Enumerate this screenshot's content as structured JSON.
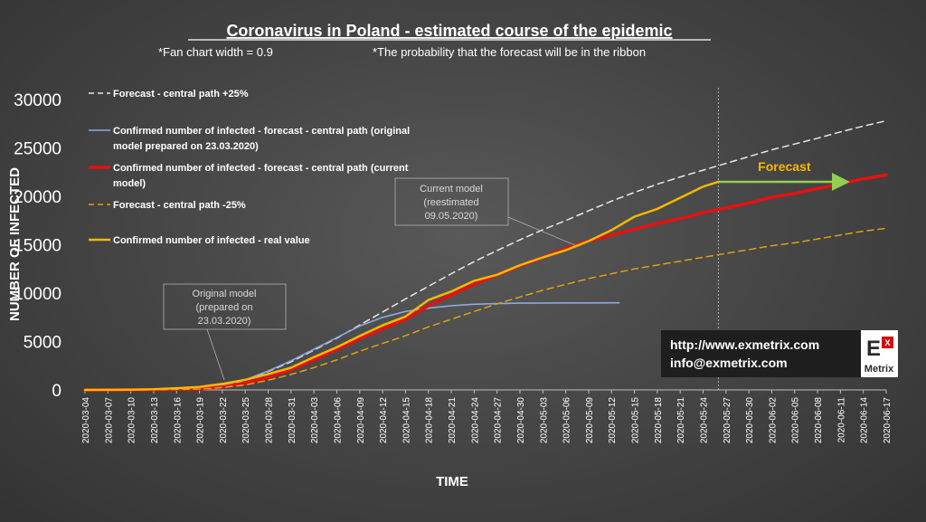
{
  "chart_data": {
    "type": "line",
    "title": "Coronavirus in Poland - estimated course of the epidemic",
    "subtitle_left": "*Fan chart width = 0.9",
    "subtitle_right": "*The probability that the forecast will be in the ribbon",
    "xlabel": "TIME",
    "ylabel": "NUMBER OF INFECTED",
    "ylim": [
      0,
      30000
    ],
    "yticks": [
      0,
      5000,
      10000,
      15000,
      20000,
      25000,
      30000
    ],
    "xtick_labels": [
      "2020-03-04",
      "2020-03-07",
      "2020-03-10",
      "2020-03-13",
      "2020-03-16",
      "2020-03-19",
      "2020-03-22",
      "2020-03-25",
      "2020-03-28",
      "2020-03-31",
      "2020-04-03",
      "2020-04-06",
      "2020-04-09",
      "2020-04-12",
      "2020-04-15",
      "2020-04-18",
      "2020-04-21",
      "2020-04-24",
      "2020-04-27",
      "2020-04-30",
      "2020-05-03",
      "2020-05-06",
      "2020-05-09",
      "2020-05-12",
      "2020-05-15",
      "2020-05-18",
      "2020-05-21",
      "2020-05-24",
      "2020-05-27",
      "2020-05-30",
      "2020-06-02",
      "2020-06-05",
      "2020-06-08",
      "2020-06-11",
      "2020-06-14",
      "2020-06-17"
    ],
    "grid": false,
    "legend_position": "top-left",
    "forecast_start": "2020-05-26",
    "forecast_label": "Forecast",
    "series": [
      {
        "name": "Forecast - central path +25%",
        "color": "#e8e8e8",
        "style": "dashed",
        "width": 1.5,
        "points": [
          [
            "2020-03-04",
            0
          ],
          [
            "2020-03-13",
            30
          ],
          [
            "2020-03-19",
            200
          ],
          [
            "2020-03-22",
            450
          ],
          [
            "2020-03-25",
            1000
          ],
          [
            "2020-03-28",
            1900
          ],
          [
            "2020-03-31",
            2900
          ],
          [
            "2020-04-03",
            4100
          ],
          [
            "2020-04-06",
            5350
          ],
          [
            "2020-04-09",
            6700
          ],
          [
            "2020-04-12",
            8050
          ],
          [
            "2020-04-15",
            9400
          ],
          [
            "2020-04-18",
            10700
          ],
          [
            "2020-04-21",
            12000
          ],
          [
            "2020-04-24",
            13250
          ],
          [
            "2020-04-27",
            14400
          ],
          [
            "2020-04-30",
            15500
          ],
          [
            "2020-05-03",
            16550
          ],
          [
            "2020-05-06",
            17500
          ],
          [
            "2020-05-09",
            18500
          ],
          [
            "2020-05-12",
            19500
          ],
          [
            "2020-05-15",
            20400
          ],
          [
            "2020-05-18",
            21250
          ],
          [
            "2020-05-21",
            22000
          ],
          [
            "2020-05-24",
            22700
          ],
          [
            "2020-05-27",
            23400
          ],
          [
            "2020-05-30",
            24100
          ],
          [
            "2020-06-02",
            24800
          ],
          [
            "2020-06-05",
            25400
          ],
          [
            "2020-06-08",
            26000
          ],
          [
            "2020-06-11",
            26650
          ],
          [
            "2020-06-14",
            27250
          ],
          [
            "2020-06-17",
            27800
          ]
        ]
      },
      {
        "name": "Confirmed number of infected - forecast - central path (original model prepared on 23.03.2020)",
        "color": "#8ea9db",
        "style": "solid",
        "width": 1.6,
        "points": [
          [
            "2020-03-04",
            0
          ],
          [
            "2020-03-13",
            30
          ],
          [
            "2020-03-19",
            200
          ],
          [
            "2020-03-22",
            500
          ],
          [
            "2020-03-25",
            1050
          ],
          [
            "2020-03-28",
            1950
          ],
          [
            "2020-03-31",
            3000
          ],
          [
            "2020-04-03",
            4200
          ],
          [
            "2020-04-06",
            5400
          ],
          [
            "2020-04-09",
            6600
          ],
          [
            "2020-04-12",
            7500
          ],
          [
            "2020-04-15",
            8100
          ],
          [
            "2020-04-18",
            8450
          ],
          [
            "2020-04-21",
            8700
          ],
          [
            "2020-04-24",
            8850
          ],
          [
            "2020-04-27",
            8920
          ],
          [
            "2020-04-30",
            8960
          ],
          [
            "2020-05-03",
            8980
          ],
          [
            "2020-05-06",
            8990
          ],
          [
            "2020-05-09",
            8995
          ],
          [
            "2020-05-13",
            9000
          ]
        ]
      },
      {
        "name": "Confirmed number of infected - forecast - central path (current model)",
        "color": "#e81010",
        "style": "solid",
        "width": 3.5,
        "points": [
          [
            "2020-03-04",
            0
          ],
          [
            "2020-03-13",
            20
          ],
          [
            "2020-03-19",
            100
          ],
          [
            "2020-03-22",
            300
          ],
          [
            "2020-03-25",
            700
          ],
          [
            "2020-03-28",
            1300
          ],
          [
            "2020-03-31",
            2100
          ],
          [
            "2020-04-03",
            3100
          ],
          [
            "2020-04-06",
            4200
          ],
          [
            "2020-04-09",
            5300
          ],
          [
            "2020-04-12",
            6300
          ],
          [
            "2020-04-15",
            7300
          ],
          [
            "2020-04-18",
            8700
          ],
          [
            "2020-04-21",
            9800
          ],
          [
            "2020-04-24",
            10900
          ],
          [
            "2020-04-27",
            11900
          ],
          [
            "2020-04-30",
            12800
          ],
          [
            "2020-05-03",
            13700
          ],
          [
            "2020-05-06",
            14600
          ],
          [
            "2020-05-09",
            15400
          ],
          [
            "2020-05-12",
            16000
          ],
          [
            "2020-05-15",
            16600
          ],
          [
            "2020-05-18",
            17200
          ],
          [
            "2020-05-21",
            17700
          ],
          [
            "2020-05-24",
            18300
          ],
          [
            "2020-05-27",
            18800
          ],
          [
            "2020-05-30",
            19300
          ],
          [
            "2020-06-02",
            19900
          ],
          [
            "2020-06-05",
            20300
          ],
          [
            "2020-06-08",
            20800
          ],
          [
            "2020-06-11",
            21300
          ],
          [
            "2020-06-14",
            21800
          ],
          [
            "2020-06-17",
            22200
          ]
        ]
      },
      {
        "name": "Forecast - central path -25%",
        "color": "#e0a010",
        "style": "dashed",
        "width": 1.5,
        "points": [
          [
            "2020-03-04",
            0
          ],
          [
            "2020-03-13",
            15
          ],
          [
            "2020-03-19",
            80
          ],
          [
            "2020-03-22",
            250
          ],
          [
            "2020-03-25",
            500
          ],
          [
            "2020-03-28",
            1000
          ],
          [
            "2020-03-31",
            1600
          ],
          [
            "2020-04-03",
            2300
          ],
          [
            "2020-04-06",
            3100
          ],
          [
            "2020-04-09",
            4000
          ],
          [
            "2020-04-12",
            4800
          ],
          [
            "2020-04-15",
            5600
          ],
          [
            "2020-04-18",
            6500
          ],
          [
            "2020-04-21",
            7300
          ],
          [
            "2020-04-24",
            8100
          ],
          [
            "2020-04-27",
            8900
          ],
          [
            "2020-04-30",
            9600
          ],
          [
            "2020-05-03",
            10300
          ],
          [
            "2020-05-06",
            10900
          ],
          [
            "2020-05-09",
            11500
          ],
          [
            "2020-05-12",
            12000
          ],
          [
            "2020-05-15",
            12500
          ],
          [
            "2020-05-18",
            12900
          ],
          [
            "2020-05-21",
            13300
          ],
          [
            "2020-05-24",
            13700
          ],
          [
            "2020-05-27",
            14100
          ],
          [
            "2020-05-30",
            14500
          ],
          [
            "2020-06-02",
            14900
          ],
          [
            "2020-06-05",
            15200
          ],
          [
            "2020-06-08",
            15600
          ],
          [
            "2020-06-11",
            16000
          ],
          [
            "2020-06-14",
            16400
          ],
          [
            "2020-06-17",
            16700
          ]
        ]
      },
      {
        "name": "Confirmed number of infected - real value",
        "color": "#f5b800",
        "style": "solid",
        "width": 2.5,
        "points": [
          [
            "2020-03-04",
            1
          ],
          [
            "2020-03-07",
            5
          ],
          [
            "2020-03-10",
            20
          ],
          [
            "2020-03-13",
            70
          ],
          [
            "2020-03-16",
            180
          ],
          [
            "2020-03-19",
            300
          ],
          [
            "2020-03-22",
            630
          ],
          [
            "2020-03-25",
            1050
          ],
          [
            "2020-03-28",
            1640
          ],
          [
            "2020-03-31",
            2300
          ],
          [
            "2020-04-03",
            3380
          ],
          [
            "2020-04-06",
            4410
          ],
          [
            "2020-04-09",
            5570
          ],
          [
            "2020-04-12",
            6670
          ],
          [
            "2020-04-15",
            7580
          ],
          [
            "2020-04-18",
            9290
          ],
          [
            "2020-04-21",
            10170
          ],
          [
            "2020-04-24",
            11270
          ],
          [
            "2020-04-27",
            11900
          ],
          [
            "2020-04-30",
            12880
          ],
          [
            "2020-05-03",
            13690
          ],
          [
            "2020-05-06",
            14430
          ],
          [
            "2020-05-09",
            15370
          ],
          [
            "2020-05-12",
            16500
          ],
          [
            "2020-05-15",
            17900
          ],
          [
            "2020-05-18",
            18700
          ],
          [
            "2020-05-21",
            19850
          ],
          [
            "2020-05-24",
            21000
          ],
          [
            "2020-05-26",
            21500
          ]
        ]
      }
    ],
    "annotations": {
      "original_model": [
        "Original model",
        "(prepared on",
        "23.03.2020)"
      ],
      "current_model": [
        "Current model",
        "(reestimated",
        "09.05.2020)"
      ]
    }
  },
  "contact": {
    "url": "http://www.exmetrix.com",
    "email": "info@exmetrix.com"
  },
  "logo": {
    "letter_e": "E",
    "letter_x": "X",
    "name": "Metrix"
  }
}
